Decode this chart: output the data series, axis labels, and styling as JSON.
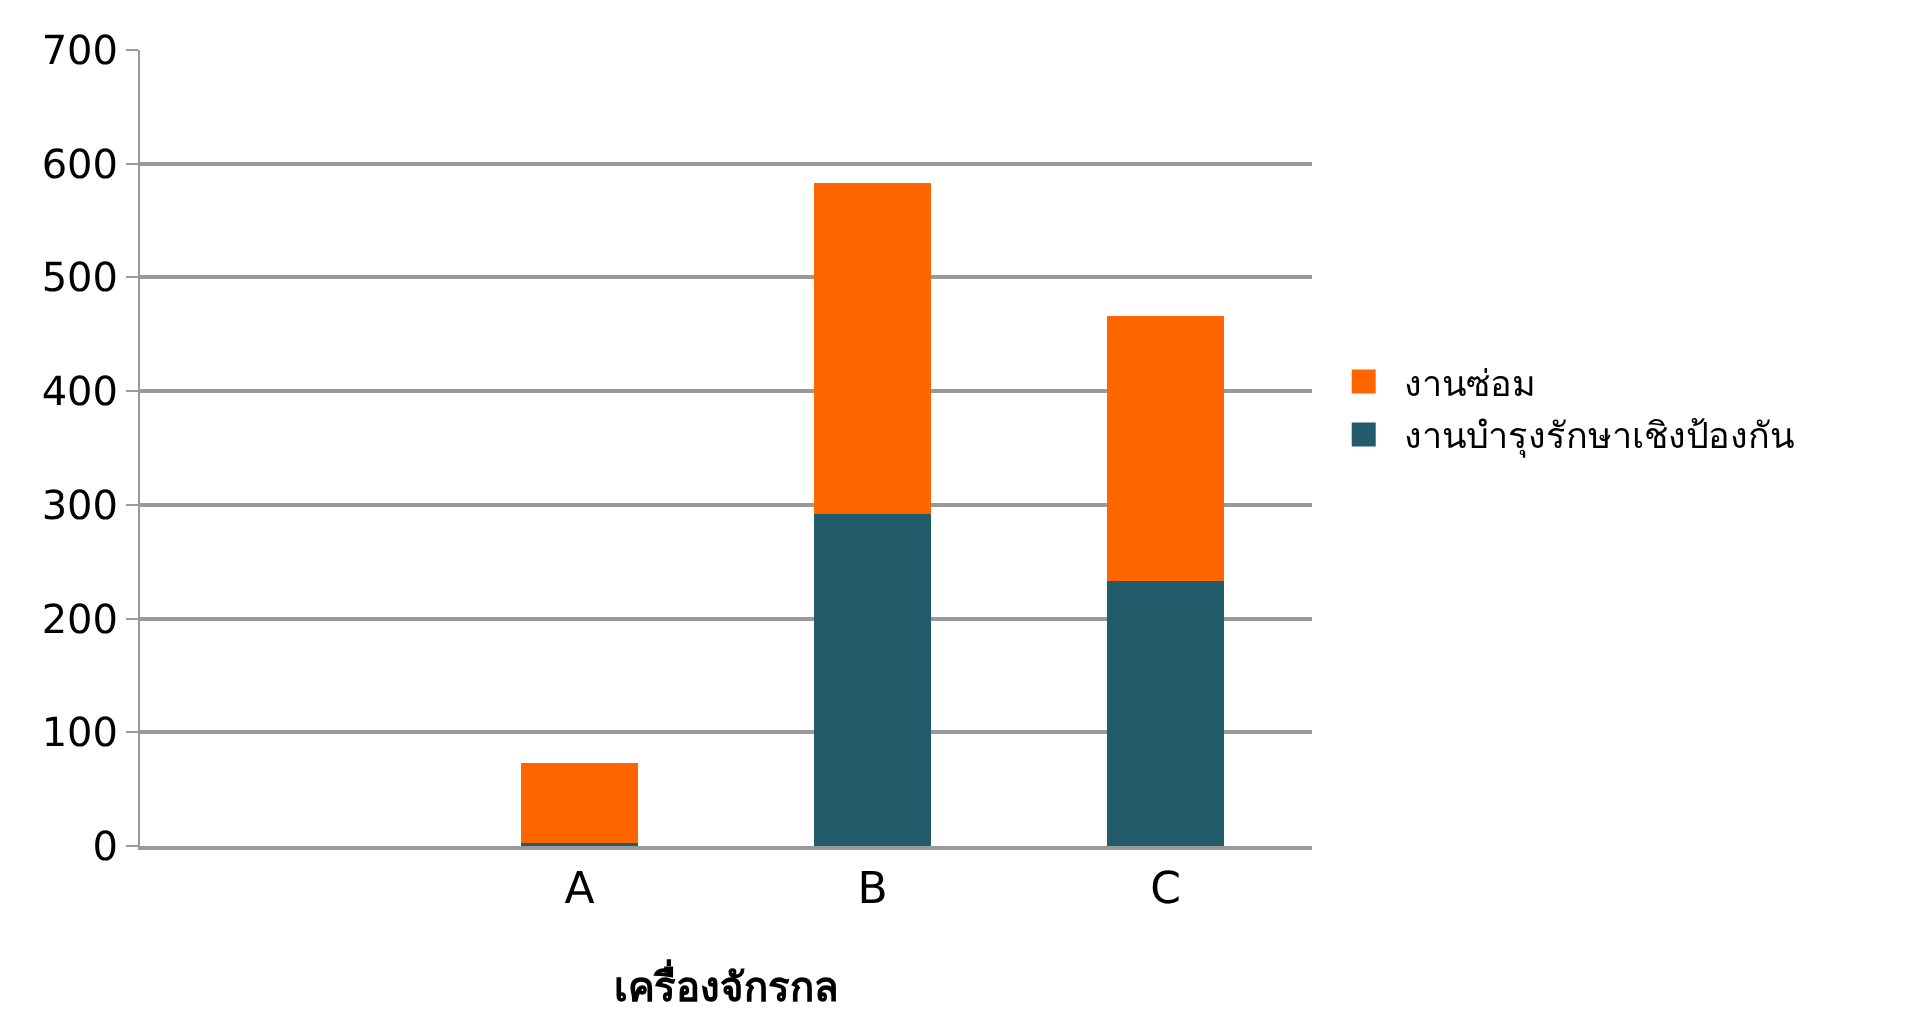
{
  "chart_data": {
    "type": "bar",
    "stacked": true,
    "xlabel": "เครื่องจักรกล",
    "categories": [
      null,
      "A",
      "B",
      "C"
    ],
    "series": [
      {
        "name": "งานบำรุงรักษาเชิงป้องกัน",
        "color": "#225b6a",
        "values": [
          null,
          3,
          292,
          233
        ]
      },
      {
        "name": "งานซ่อม",
        "color": "#ff6600",
        "values": [
          null,
          70,
          291,
          233
        ]
      }
    ],
    "ylim": [
      0,
      700
    ],
    "yticks": [
      0,
      100,
      200,
      300,
      400,
      500,
      600,
      700
    ],
    "grid": "y",
    "legend": "right"
  }
}
